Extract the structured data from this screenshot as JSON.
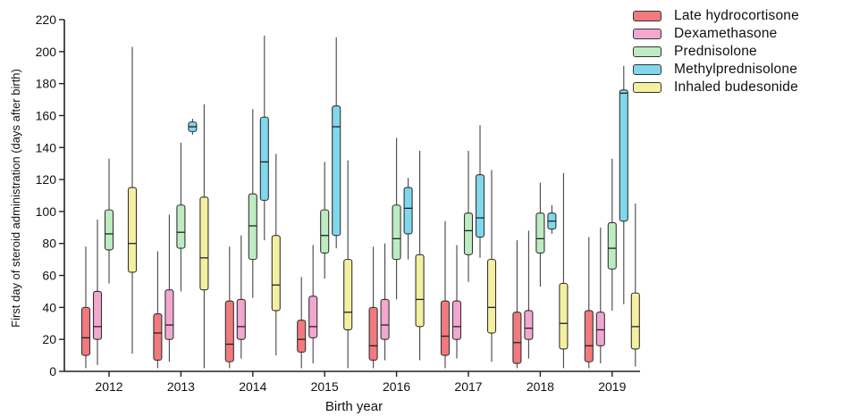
{
  "chart_data": {
    "type": "boxplot",
    "xlabel": "Birth year",
    "ylabel": "First day of steroid administration (days after birth)",
    "ylim": [
      0,
      220
    ],
    "yticks": [
      0,
      20,
      40,
      60,
      80,
      100,
      120,
      140,
      160,
      180,
      200,
      220
    ],
    "categories": [
      "2012",
      "2013",
      "2014",
      "2015",
      "2016",
      "2017",
      "2018",
      "2019"
    ],
    "series": [
      {
        "name": "Late hydrocortisone",
        "color": "#f07a7e",
        "values": [
          {
            "min": 2,
            "q1": 10,
            "median": 21,
            "q3": 40,
            "max": 78
          },
          {
            "min": 2,
            "q1": 7,
            "median": 24,
            "q3": 36,
            "max": 75
          },
          {
            "min": 2,
            "q1": 6,
            "median": 17,
            "q3": 44,
            "max": 78
          },
          {
            "min": 2,
            "q1": 12,
            "median": 20,
            "q3": 32,
            "max": 59
          },
          {
            "min": 2,
            "q1": 7,
            "median": 16,
            "q3": 40,
            "max": 78
          },
          {
            "min": 2,
            "q1": 10,
            "median": 22,
            "q3": 44,
            "max": 94
          },
          {
            "min": 2,
            "q1": 5,
            "median": 18,
            "q3": 37,
            "max": 82
          },
          {
            "min": 2,
            "q1": 6,
            "median": 16,
            "q3": 38,
            "max": 84
          }
        ]
      },
      {
        "name": "Dexamethasone",
        "color": "#f2a7cf",
        "values": [
          {
            "min": 4,
            "q1": 20,
            "median": 28,
            "q3": 50,
            "max": 95
          },
          {
            "min": 6,
            "q1": 20,
            "median": 29,
            "q3": 51,
            "max": 98
          },
          {
            "min": 8,
            "q1": 20,
            "median": 28,
            "q3": 45,
            "max": 85
          },
          {
            "min": 5,
            "q1": 21,
            "median": 28,
            "q3": 47,
            "max": 79
          },
          {
            "min": 7,
            "q1": 20,
            "median": 29,
            "q3": 45,
            "max": 80
          },
          {
            "min": 8,
            "q1": 20,
            "median": 28,
            "q3": 44,
            "max": 79
          },
          {
            "min": 8,
            "q1": 20,
            "median": 27,
            "q3": 38,
            "max": 88
          },
          {
            "min": 5,
            "q1": 16,
            "median": 26,
            "q3": 37,
            "max": 90
          }
        ]
      },
      {
        "name": "Prednisolone",
        "color": "#bdebc2",
        "values": [
          {
            "min": 55,
            "q1": 76,
            "median": 86,
            "q3": 101,
            "max": 133
          },
          {
            "min": 50,
            "q1": 77,
            "median": 87,
            "q3": 104,
            "max": 143
          },
          {
            "min": 46,
            "q1": 70,
            "median": 91,
            "q3": 111,
            "max": 164
          },
          {
            "min": 58,
            "q1": 74,
            "median": 85,
            "q3": 101,
            "max": 131
          },
          {
            "min": 45,
            "q1": 70,
            "median": 83,
            "q3": 104,
            "max": 146
          },
          {
            "min": 56,
            "q1": 73,
            "median": 88,
            "q3": 99,
            "max": 138
          },
          {
            "min": 53,
            "q1": 74,
            "median": 83,
            "q3": 99,
            "max": 118
          },
          {
            "min": 38,
            "q1": 64,
            "median": 77,
            "q3": 93,
            "max": 133
          }
        ]
      },
      {
        "name": "Methylprednisolone",
        "color": "#7fd8ec",
        "values": [
          null,
          {
            "min": 148,
            "q1": 150,
            "median": 153,
            "q3": 156,
            "max": 158
          },
          {
            "min": 82,
            "q1": 107,
            "median": 131,
            "q3": 159,
            "max": 210
          },
          {
            "min": 77,
            "q1": 85,
            "median": 153,
            "q3": 166,
            "max": 209
          },
          {
            "min": 70,
            "q1": 86,
            "median": 102,
            "q3": 115,
            "max": 121
          },
          {
            "min": 71,
            "q1": 84,
            "median": 96,
            "q3": 123,
            "max": 154
          },
          {
            "min": 86,
            "q1": 89,
            "median": 94,
            "q3": 99,
            "max": 104
          },
          {
            "min": 42,
            "q1": 94,
            "median": 174,
            "q3": 176,
            "max": 191
          }
        ]
      },
      {
        "name": "Inhaled budesonide",
        "color": "#f5f0a0",
        "values": [
          {
            "min": 11,
            "q1": 62,
            "median": 80,
            "q3": 115,
            "max": 203
          },
          {
            "min": 2,
            "q1": 51,
            "median": 71,
            "q3": 109,
            "max": 167
          },
          {
            "min": 10,
            "q1": 38,
            "median": 54,
            "q3": 85,
            "max": 136
          },
          {
            "min": 2,
            "q1": 26,
            "median": 37,
            "q3": 70,
            "max": 132
          },
          {
            "min": 7,
            "q1": 28,
            "median": 45,
            "q3": 73,
            "max": 138
          },
          {
            "min": 6,
            "q1": 24,
            "median": 40,
            "q3": 70,
            "max": 126
          },
          {
            "min": 2,
            "q1": 14,
            "median": 30,
            "q3": 55,
            "max": 124
          },
          {
            "min": 3,
            "q1": 14,
            "median": 28,
            "q3": 49,
            "max": 105
          }
        ]
      }
    ]
  }
}
